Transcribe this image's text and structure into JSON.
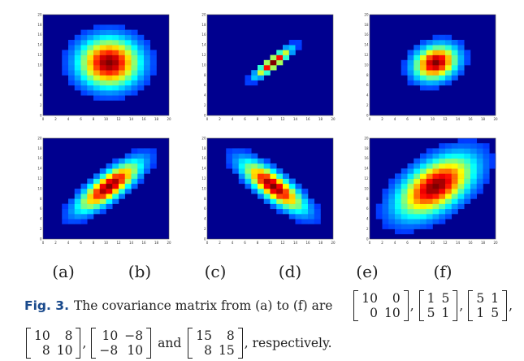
{
  "figure": {
    "axis": {
      "x_ticks": [
        "0",
        "2",
        "4",
        "6",
        "8",
        "10",
        "12",
        "14",
        "16",
        "18",
        "20"
      ],
      "y_ticks": [
        "0",
        "2",
        "4",
        "6",
        "8",
        "10",
        "12",
        "14",
        "16",
        "18",
        "20"
      ],
      "xlim": [
        0,
        20
      ],
      "ylim": [
        0,
        20
      ]
    },
    "colormap": "jet",
    "background_color": "#00008f",
    "panels": [
      {
        "id": "a",
        "mean": [
          10.5,
          10.5
        ],
        "covariance": [
          [
            10,
            0
          ],
          [
            0,
            10
          ]
        ]
      },
      {
        "id": "b",
        "mean": [
          10.5,
          10.5
        ],
        "covariance": [
          [
            1,
            5
          ],
          [
            5,
            1
          ]
        ]
      },
      {
        "id": "c",
        "mean": [
          10.5,
          10.5
        ],
        "covariance": [
          [
            5,
            1
          ],
          [
            1,
            5
          ]
        ]
      },
      {
        "id": "d",
        "mean": [
          10.5,
          10.5
        ],
        "covariance": [
          [
            10,
            8
          ],
          [
            8,
            10
          ]
        ]
      },
      {
        "id": "e",
        "mean": [
          10.5,
          10.5
        ],
        "covariance": [
          [
            10,
            -8
          ],
          [
            -8,
            10
          ]
        ]
      },
      {
        "id": "f",
        "mean": [
          10.5,
          10.5
        ],
        "covariance": [
          [
            15,
            8
          ],
          [
            8,
            15
          ]
        ]
      }
    ]
  },
  "sublabels": [
    "(a)",
    "(b)",
    "(c)",
    "(d)",
    "(e)",
    "(f)"
  ],
  "caption": {
    "fig_label": "Fig. 3.",
    "text_before": "The covariance matrix from (a) to (f) are",
    "and_word": "and",
    "text_after": ", respectively.",
    "comma": ",",
    "matrices": [
      [
        [
          "10",
          "0"
        ],
        [
          "0",
          "10"
        ]
      ],
      [
        [
          "1",
          "5"
        ],
        [
          "5",
          "1"
        ]
      ],
      [
        [
          "5",
          "1"
        ],
        [
          "1",
          "5"
        ]
      ],
      [
        [
          "10",
          "8"
        ],
        [
          "8",
          "10"
        ]
      ],
      [
        [
          "10",
          "−8"
        ],
        [
          "−8",
          "10"
        ]
      ],
      [
        [
          "15",
          "8"
        ],
        [
          "8",
          "15"
        ]
      ]
    ]
  }
}
